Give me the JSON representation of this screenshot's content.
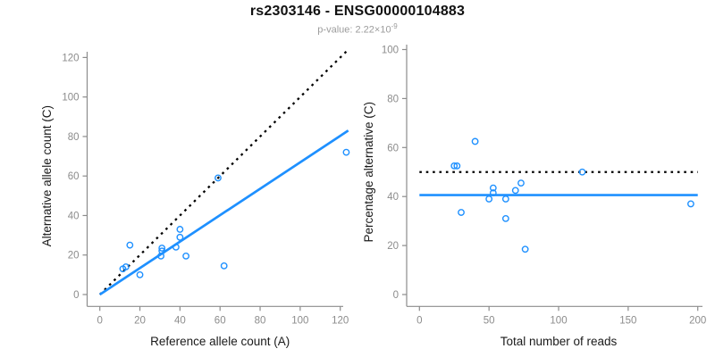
{
  "header": {
    "title": "rs2303146 - ENSG00000104883",
    "p_label": "p-value: 2.22×10",
    "p_exponent": "-9"
  },
  "colors": {
    "accent": "#1E90FF",
    "dotted_line": "#000000",
    "axis": "#8c8c8c",
    "tick_text": "#8c8c8c",
    "label_text": "#1a1a1a"
  },
  "chart_data": [
    {
      "type": "scatter",
      "name": "allele-counts-scatter",
      "xlabel": "Reference allele count (A)",
      "ylabel": "Alternative allele count (C)",
      "xlim": [
        0,
        120
      ],
      "ylim": [
        0,
        120
      ],
      "x_ticks": [
        0,
        20,
        40,
        60,
        80,
        100,
        120
      ],
      "y_ticks": [
        0,
        20,
        40,
        60,
        80,
        100,
        120
      ],
      "grid": false,
      "legend": "none",
      "points": [
        [
          11.5,
          13
        ],
        [
          13,
          14
        ],
        [
          15,
          25
        ],
        [
          20,
          10
        ],
        [
          30.5,
          19.5
        ],
        [
          31,
          22
        ],
        [
          31,
          23.5
        ],
        [
          38,
          24
        ],
        [
          40,
          29
        ],
        [
          40,
          33
        ],
        [
          43,
          19.5
        ],
        [
          59,
          59
        ],
        [
          62,
          14.5
        ],
        [
          123,
          72
        ]
      ],
      "lines": [
        {
          "name": "identity-line",
          "style": "dotted",
          "color": "#000000",
          "from": [
            0,
            0
          ],
          "to": [
            123,
            123
          ]
        },
        {
          "name": "fit-line",
          "style": "solid",
          "color": "#1E90FF",
          "from": [
            0,
            0
          ],
          "to": [
            124,
            83
          ]
        }
      ]
    },
    {
      "type": "scatter",
      "name": "percentage-alternative-scatter",
      "xlabel": "Total number of reads",
      "ylabel": "Percentage alternative (C)",
      "xlim": [
        0,
        200
      ],
      "ylim": [
        0,
        100
      ],
      "x_ticks": [
        0,
        50,
        100,
        150,
        200
      ],
      "y_ticks": [
        0,
        20,
        40,
        60,
        80,
        100
      ],
      "grid": false,
      "legend": "none",
      "points": [
        [
          25,
          52.5
        ],
        [
          27,
          52.5
        ],
        [
          30,
          33.5
        ],
        [
          40,
          62.5
        ],
        [
          50,
          39
        ],
        [
          53,
          41.5
        ],
        [
          53,
          43.5
        ],
        [
          62,
          31
        ],
        [
          62,
          39
        ],
        [
          69,
          42.5
        ],
        [
          73,
          45.5
        ],
        [
          76,
          18.5
        ],
        [
          117,
          50
        ],
        [
          195,
          37
        ]
      ],
      "lines": [
        {
          "name": "expected-50pct-line",
          "style": "dotted",
          "color": "#000000",
          "from": [
            0,
            50
          ],
          "to": [
            200,
            50
          ]
        },
        {
          "name": "mean-pct-line",
          "style": "solid",
          "color": "#1E90FF",
          "from": [
            0,
            40.6
          ],
          "to": [
            200,
            40.6
          ]
        }
      ]
    }
  ]
}
